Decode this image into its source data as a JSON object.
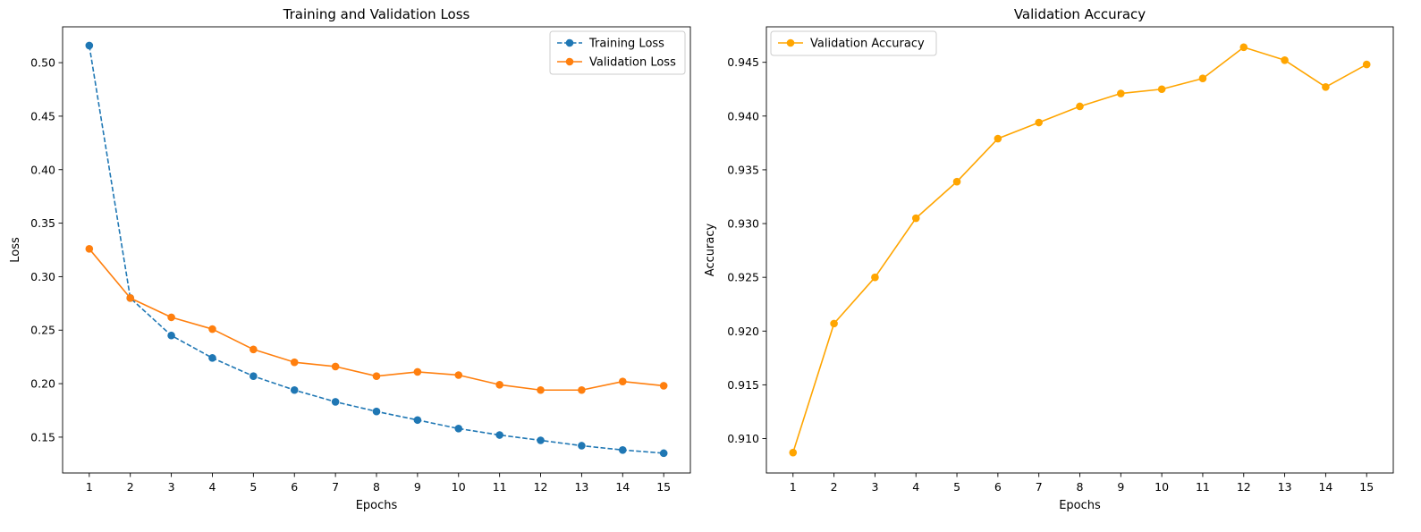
{
  "chart_data": [
    {
      "type": "line",
      "title": "Training and Validation Loss",
      "xlabel": "Epochs",
      "ylabel": "Loss",
      "x": [
        1,
        2,
        3,
        4,
        5,
        6,
        7,
        8,
        9,
        10,
        11,
        12,
        13,
        14,
        15
      ],
      "x_ticks": [
        1,
        2,
        3,
        4,
        5,
        6,
        7,
        8,
        9,
        10,
        11,
        12,
        13,
        14,
        15
      ],
      "xlim": [
        0.35,
        15.65
      ],
      "y_ticks": [
        0.15,
        0.2,
        0.25,
        0.3,
        0.35,
        0.4,
        0.45,
        0.5
      ],
      "ylim": [
        0.1165,
        0.5335
      ],
      "grid": false,
      "legend_position": "upper right",
      "series": [
        {
          "name": "Training Loss",
          "color": "#1f77b4",
          "line_style": "dashed",
          "marker": "circle",
          "values": [
            0.516,
            0.28,
            0.245,
            0.224,
            0.207,
            0.194,
            0.183,
            0.174,
            0.166,
            0.158,
            0.152,
            0.147,
            0.142,
            0.138,
            0.135
          ]
        },
        {
          "name": "Validation Loss",
          "color": "#ff7f0e",
          "line_style": "solid",
          "marker": "circle",
          "values": [
            0.326,
            0.28,
            0.262,
            0.251,
            0.232,
            0.22,
            0.216,
            0.207,
            0.211,
            0.208,
            0.199,
            0.194,
            0.194,
            0.202,
            0.198
          ]
        }
      ]
    },
    {
      "type": "line",
      "title": "Validation Accuracy",
      "xlabel": "Epochs",
      "ylabel": "Accuracy",
      "x": [
        1,
        2,
        3,
        4,
        5,
        6,
        7,
        8,
        9,
        10,
        11,
        12,
        13,
        14,
        15
      ],
      "x_ticks": [
        1,
        2,
        3,
        4,
        5,
        6,
        7,
        8,
        9,
        10,
        11,
        12,
        13,
        14,
        15
      ],
      "xlim": [
        0.35,
        15.65
      ],
      "y_ticks": [
        0.91,
        0.915,
        0.92,
        0.925,
        0.93,
        0.935,
        0.94,
        0.945
      ],
      "ylim": [
        0.9068,
        0.9483
      ],
      "grid": false,
      "legend_position": "upper left",
      "series": [
        {
          "name": "Validation Accuracy",
          "color": "#ffa500",
          "line_style": "solid",
          "marker": "circle",
          "values": [
            0.9087,
            0.9207,
            0.925,
            0.9305,
            0.9339,
            0.9379,
            0.9394,
            0.9409,
            0.9421,
            0.9425,
            0.9435,
            0.9464,
            0.9452,
            0.9427,
            0.9448
          ]
        }
      ]
    }
  ]
}
